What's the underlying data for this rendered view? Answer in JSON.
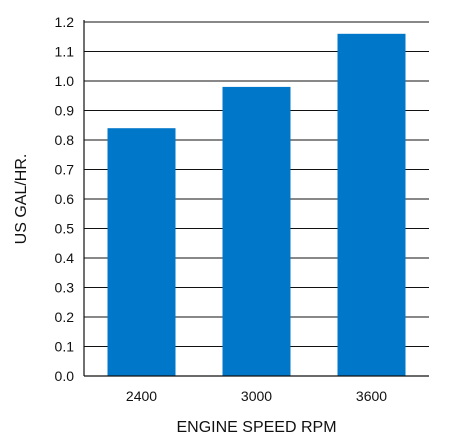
{
  "chart_data": {
    "type": "bar",
    "title": "",
    "xlabel": "ENGINE SPEED RPM",
    "ylabel": "US GAL/HR.",
    "categories": [
      "2400",
      "3000",
      "3600"
    ],
    "values": [
      0.84,
      0.98,
      1.16
    ],
    "ylim": [
      0.0,
      1.2
    ],
    "yticks": [
      0.0,
      0.1,
      0.2,
      0.3,
      0.4,
      0.5,
      0.6,
      0.7,
      0.8,
      0.9,
      1.0,
      1.1,
      1.2
    ],
    "ytick_labels": [
      "0.0",
      "0.1",
      "0.2",
      "0.3",
      "0.4",
      "0.5",
      "0.6",
      "0.7",
      "0.8",
      "0.9",
      "1.0",
      "1.1",
      "1.2"
    ],
    "grid": "horizontal",
    "legend": "none",
    "bar_color": "#0077C8"
  }
}
